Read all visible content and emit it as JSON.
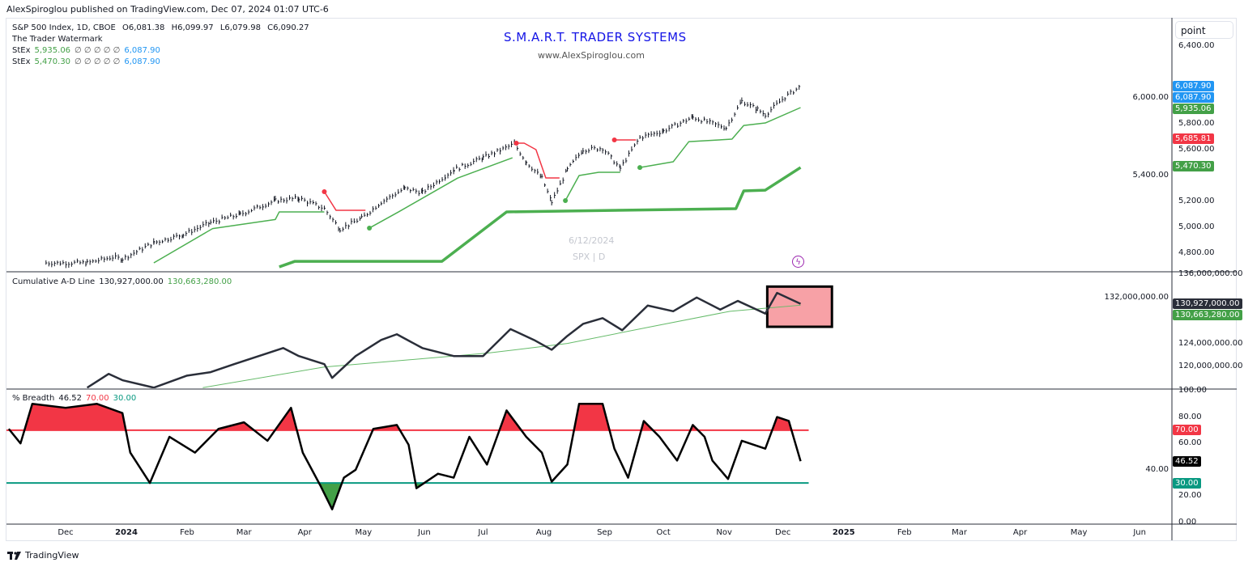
{
  "header": {
    "published": "AlexSpiroglou published on TradingView.com, Dec 07, 2024 01:07 UTC-6"
  },
  "legend": {
    "symbol": "S&P 500 Index, 1D, CBOE",
    "open": "O6,081.38",
    "high": "H6,099.97",
    "low": "L6,079.98",
    "close": "C6,090.27",
    "indicator1": "The Trader Watermark",
    "stex1": {
      "name": "StEx",
      "v1": "5,935.06",
      "empty": "∅ ∅ ∅ ∅ ∅",
      "v2": "6,087.90"
    },
    "stex2": {
      "name": "StEx",
      "v1": "5,470.30",
      "empty": "∅ ∅ ∅ ∅ ∅",
      "v2": "6,087.90"
    },
    "ad": {
      "name": "Cumulative A-D Line",
      "v1": "130,927,000.00",
      "v2": "130,663,280.00"
    },
    "breadth": {
      "name": "% Breadth",
      "v1": "46.52",
      "v2": "70.00",
      "v3": "30.00"
    }
  },
  "watermark": {
    "title": "S.M.A.R.T. TRADER SYSTEMS",
    "url": "www.AlexSpiroglou.com",
    "date": "6/12/2024",
    "symbol": "SPX | D"
  },
  "scale_button": "point",
  "footer": {
    "brand": "TradingView"
  },
  "icons": {
    "lightning": "lightning-icon",
    "logo": "tradingview-logo"
  },
  "colors": {
    "price": "#131722",
    "stop_green": "#4caf50",
    "stop_red": "#f23645",
    "ad": "#2a2e39",
    "ad_ma": "#66bb6a",
    "overbought_fill": "#f23645",
    "oversold_fill": "#43a047",
    "level70": "#f23645",
    "level30": "#089981",
    "box": "#f7a1a6"
  },
  "chart_data": [
    {
      "type": "line",
      "title": "S&P 500 Index, 1D",
      "x_unit": "days since 2023-12-01",
      "ylim": [
        4700,
        6500
      ],
      "y_ticks": [
        "6,400.00",
        "6,000.00",
        "5,800.00",
        "5,600.00",
        "5,400.00",
        "5,200.00",
        "5,000.00",
        "4,800.00"
      ],
      "y_tick_values": [
        6400,
        6000,
        5800,
        5600,
        5400,
        5200,
        5000,
        4800
      ],
      "price_tags": [
        {
          "label": "6,087.90",
          "value": 6087.9,
          "color": "#2196f3"
        },
        {
          "label": "6,087.90",
          "value": 6087.9,
          "color": "#2196f3"
        },
        {
          "label": "5,935.06",
          "value": 5935.06,
          "color": "#43a047"
        },
        {
          "label": "5,685.81",
          "value": 5685.81,
          "color": "#f23645"
        },
        {
          "label": "5,470.30",
          "value": 5470.3,
          "color": "#43a047"
        }
      ],
      "price": [
        [
          -10,
          4725
        ],
        [
          11,
          4725
        ],
        [
          24,
          4769
        ],
        [
          29,
          4756
        ],
        [
          45,
          4881
        ],
        [
          60,
          4944
        ],
        [
          74,
          5037
        ],
        [
          89,
          5100
        ],
        [
          107,
          5206
        ],
        [
          119,
          5225
        ],
        [
          132,
          5144
        ],
        [
          140,
          4987
        ],
        [
          151,
          5069
        ],
        [
          161,
          5194
        ],
        [
          173,
          5300
        ],
        [
          182,
          5269
        ],
        [
          198,
          5444
        ],
        [
          213,
          5537
        ],
        [
          229,
          5644
        ],
        [
          235,
          5506
        ],
        [
          243,
          5381
        ],
        [
          248,
          5194
        ],
        [
          256,
          5444
        ],
        [
          264,
          5600
        ],
        [
          274,
          5612
        ],
        [
          283,
          5456
        ],
        [
          293,
          5694
        ],
        [
          305,
          5744
        ],
        [
          320,
          5850
        ],
        [
          337,
          5769
        ],
        [
          345,
          5975
        ],
        [
          353,
          5912
        ],
        [
          357,
          5869
        ],
        [
          367,
          6006
        ],
        [
          375,
          6090
        ]
      ],
      "stops": [
        {
          "color": "green",
          "width": "thin",
          "dot": false,
          "points": [
            [
              45,
              4725
            ],
            [
              75,
              4990
            ],
            [
              107,
              5060
            ],
            [
              109,
              5119
            ],
            [
              132,
              5119
            ]
          ]
        },
        {
          "color": "red",
          "width": "thin",
          "dot": true,
          "points": [
            [
              132,
              5275
            ],
            [
              138,
              5131
            ],
            [
              153,
              5131
            ]
          ]
        },
        {
          "color": "green",
          "width": "thin",
          "dot": true,
          "points": [
            [
              155,
              4994
            ],
            [
              170,
              5120
            ],
            [
              200,
              5380
            ],
            [
              228,
              5537
            ]
          ]
        },
        {
          "color": "red",
          "width": "thin",
          "dot": true,
          "points": [
            [
              230,
              5650
            ],
            [
              234,
              5650
            ],
            [
              240,
              5600
            ],
            [
              245,
              5381
            ],
            [
              252,
              5381
            ]
          ]
        },
        {
          "color": "green",
          "width": "thin",
          "dot": true,
          "points": [
            [
              255,
              5206
            ],
            [
              262,
              5400
            ],
            [
              272,
              5425
            ],
            [
              283,
              5425
            ]
          ]
        },
        {
          "color": "red",
          "width": "thin",
          "dot": true,
          "points": [
            [
              280,
              5675
            ],
            [
              291,
              5675
            ]
          ]
        },
        {
          "color": "green",
          "width": "thin",
          "dot": true,
          "points": [
            [
              293,
              5462
            ],
            [
              310,
              5506
            ],
            [
              318,
              5662
            ],
            [
              340,
              5681
            ],
            [
              346,
              5787
            ],
            [
              357,
              5806
            ],
            [
              375,
              5925
            ]
          ]
        },
        {
          "color": "green",
          "width": "thick",
          "dot": false,
          "points": [
            [
              109,
              4694
            ],
            [
              117,
              4737
            ],
            [
              192,
              4737
            ],
            [
              225,
              5119
            ],
            [
              342,
              5144
            ],
            [
              346,
              5281
            ],
            [
              357,
              5287
            ],
            [
              375,
              5462
            ]
          ]
        }
      ]
    },
    {
      "type": "line",
      "title": "Cumulative A-D Line",
      "x_unit": "days since 2023-12-01",
      "unit": "millions",
      "ylim": [
        116,
        137
      ],
      "y_ticks": [
        "136,000,000.00",
        "132,000,000.00",
        "124,000,000.00",
        "120,000,000.00"
      ],
      "y_tick_values": [
        136,
        132,
        124,
        120
      ],
      "tags": [
        {
          "label": "130,927,000.00",
          "value": 130.927,
          "color": "#2a2e39"
        },
        {
          "label": "130,663,280.00",
          "value": 130.66,
          "color": "#43a047"
        }
      ],
      "series": [
        {
          "name": "A-D",
          "values": [
            [
              11,
              116.3
            ],
            [
              22,
              118.7
            ],
            [
              29,
              117.6
            ],
            [
              45,
              116.3
            ],
            [
              62,
              118.4
            ],
            [
              74,
              119.0
            ],
            [
              86,
              120.4
            ],
            [
              103,
              122.3
            ],
            [
              111,
              123.2
            ],
            [
              119,
              121.8
            ],
            [
              132,
              120.4
            ],
            [
              136,
              118.0
            ],
            [
              148,
              121.8
            ],
            [
              161,
              124.6
            ],
            [
              169,
              125.6
            ],
            [
              182,
              123.2
            ],
            [
              198,
              121.8
            ],
            [
              213,
              121.8
            ],
            [
              227,
              126.5
            ],
            [
              239,
              124.6
            ],
            [
              248,
              122.9
            ],
            [
              256,
              125.3
            ],
            [
              264,
              127.4
            ],
            [
              274,
              128.4
            ],
            [
              284,
              126.3
            ],
            [
              297,
              130.6
            ],
            [
              310,
              129.6
            ],
            [
              322,
              132.0
            ],
            [
              334,
              129.9
            ],
            [
              343,
              131.4
            ],
            [
              357,
              129.2
            ],
            [
              363,
              132.8
            ],
            [
              375,
              130.9
            ]
          ]
        },
        {
          "name": "MA",
          "values": [
            [
              70,
              116.3
            ],
            [
              132,
              119.9
            ],
            [
              215,
              122.3
            ],
            [
              256,
              124.0
            ],
            [
              297,
              126.8
            ],
            [
              339,
              129.6
            ],
            [
              375,
              130.66
            ]
          ]
        }
      ],
      "annotation": {
        "type": "rectangle",
        "x": [
          358,
          391
        ],
        "y": [
          126.9,
          133.9
        ]
      }
    },
    {
      "type": "area",
      "title": "% Breadth",
      "x_unit": "days since 2023-12-01",
      "ylim": [
        0,
        100
      ],
      "y_ticks": [
        "100.00",
        "80.00",
        "60.00",
        "40.00",
        "20.00",
        "0.00"
      ],
      "y_tick_values": [
        100,
        80,
        60,
        40,
        20,
        0
      ],
      "levels": [
        {
          "label": "70.00",
          "value": 70,
          "color": "#f23645"
        },
        {
          "label": "30.00",
          "value": 30,
          "color": "#089981"
        }
      ],
      "current": {
        "label": "46.52",
        "value": 46.52
      },
      "values": [
        [
          -29,
          71
        ],
        [
          -23,
          60
        ],
        [
          -17,
          90
        ],
        [
          0,
          87
        ],
        [
          16,
          90
        ],
        [
          29,
          83
        ],
        [
          33,
          53
        ],
        [
          43,
          30
        ],
        [
          53,
          65
        ],
        [
          66,
          53
        ],
        [
          78,
          71
        ],
        [
          91,
          76
        ],
        [
          103,
          62
        ],
        [
          115,
          87
        ],
        [
          121,
          53
        ],
        [
          130,
          28
        ],
        [
          136,
          10
        ],
        [
          142,
          34
        ],
        [
          148,
          40
        ],
        [
          157,
          71
        ],
        [
          169,
          74
        ],
        [
          175,
          59
        ],
        [
          179,
          26
        ],
        [
          190,
          37
        ],
        [
          198,
          34
        ],
        [
          206,
          65
        ],
        [
          215,
          44
        ],
        [
          225,
          85
        ],
        [
          235,
          65
        ],
        [
          243,
          53
        ],
        [
          248,
          31
        ],
        [
          256,
          44
        ],
        [
          262,
          90
        ],
        [
          274,
          90
        ],
        [
          280,
          56
        ],
        [
          287,
          34
        ],
        [
          295,
          77
        ],
        [
          303,
          65
        ],
        [
          312,
          47
        ],
        [
          320,
          74
        ],
        [
          326,
          65
        ],
        [
          330,
          47
        ],
        [
          338,
          33
        ],
        [
          345,
          62
        ],
        [
          357,
          56
        ],
        [
          363,
          80
        ],
        [
          369,
          77
        ],
        [
          375,
          46.52
        ]
      ]
    },
    {
      "type": "time_axis",
      "labels": [
        "Dec",
        "2024",
        "Feb",
        "Mar",
        "Apr",
        "May",
        "Jun",
        "Jul",
        "Aug",
        "Sep",
        "Oct",
        "Nov",
        "Dec",
        "2025",
        "Feb",
        "Mar",
        "Apr",
        "May",
        "Jun"
      ],
      "label_days": [
        0,
        31,
        62,
        91,
        122,
        152,
        183,
        213,
        244,
        275,
        305,
        336,
        366,
        397,
        428,
        456,
        487,
        517,
        548
      ]
    }
  ]
}
